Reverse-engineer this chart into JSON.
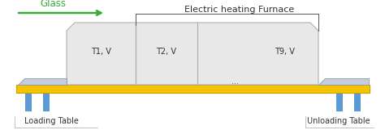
{
  "title": "Electric heating Furnace",
  "glass_label": "Glass",
  "glass_arrow_color": "#3aaa3a",
  "loading_label": "Loading Table",
  "unloading_label": "Unloading Table",
  "furnace_face_color": "#e8e8e8",
  "furnace_border_color": "#b0b0b0",
  "conveyor_color": "#f5c400",
  "conveyor_border_color": "#c8a000",
  "leg_color": "#5b9bd5",
  "glass_pane_color": "#c0c8d8",
  "glass_pane_border": "#909aaa",
  "section_labels": [
    "T1, V",
    "T2, V",
    "T9, V"
  ],
  "dots_label": "...",
  "bg_color": "#ffffff",
  "title_fontsize": 8,
  "label_fontsize": 7,
  "section_label_fontsize": 7,
  "divider_color": "#b0b0b0",
  "bracket_color": "#555555",
  "text_color": "#333333"
}
